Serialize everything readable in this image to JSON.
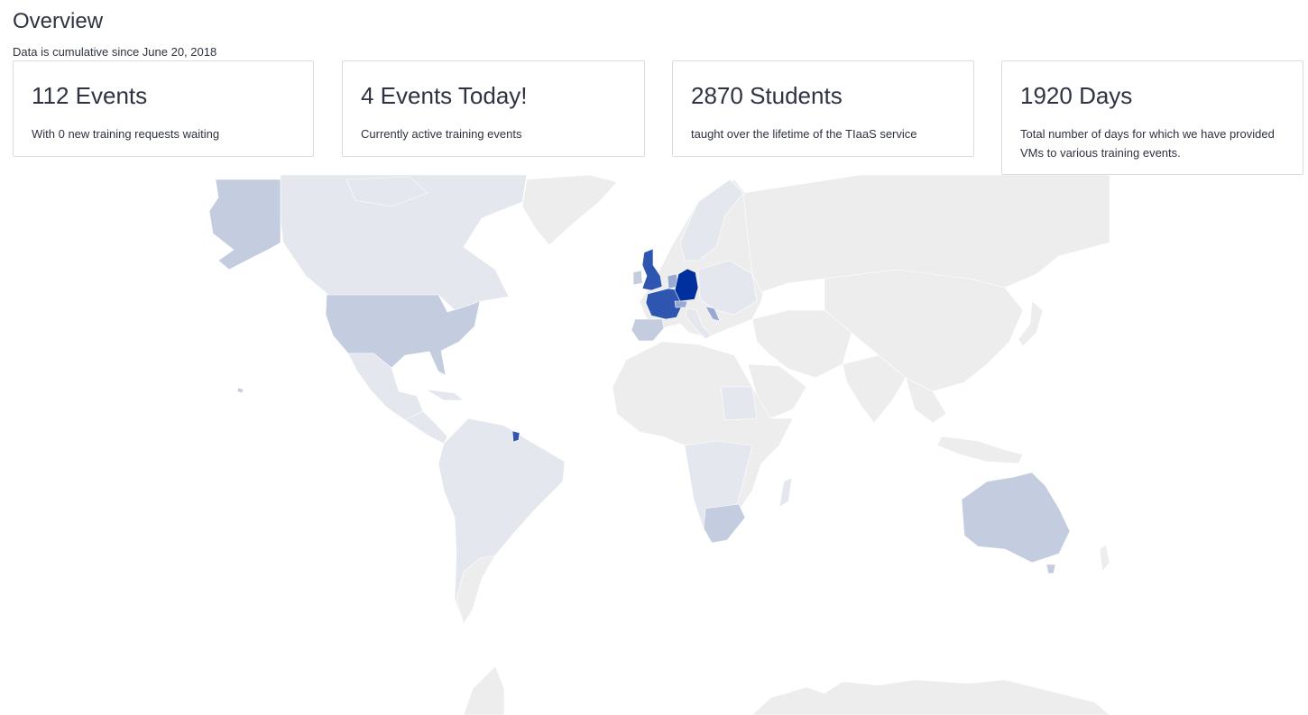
{
  "overview": {
    "title": "Overview",
    "subtitle": "Data is cumulative since June 20, 2018"
  },
  "cards": [
    {
      "title": "112 Events",
      "text": "With 0 new training requests waiting"
    },
    {
      "title": "4 Events Today!",
      "text": "Currently active training events"
    },
    {
      "title": "2870 Students",
      "text": "taught over the lifetime of the TIaaS service"
    },
    {
      "title": "1920 Days",
      "text": "Total number of days for which we have provided VMs to various training events."
    }
  ],
  "map": {
    "type": "choropleth",
    "colors": {
      "no_data": "#ededed",
      "level_1": "#e4e7ee",
      "level_2": "#c4cce0",
      "level_3": "#98aad4",
      "level_4": "#2e56b0",
      "level_5": "#00309d"
    },
    "highlighted_regions": [
      {
        "region": "Germany",
        "level": 5
      },
      {
        "region": "France",
        "level": 4
      },
      {
        "region": "United Kingdom",
        "level": 4
      },
      {
        "region": "French Guiana",
        "level": 4
      },
      {
        "region": "Netherlands",
        "level": 3
      },
      {
        "region": "Belgium",
        "level": 3
      },
      {
        "region": "Croatia",
        "level": 3
      },
      {
        "region": "Switzerland",
        "level": 3
      },
      {
        "region": "United States",
        "level": 2
      },
      {
        "region": "Alaska",
        "level": 2
      },
      {
        "region": "Australia",
        "level": 2
      },
      {
        "region": "Spain",
        "level": 2
      },
      {
        "region": "South Africa",
        "level": 2
      }
    ]
  }
}
